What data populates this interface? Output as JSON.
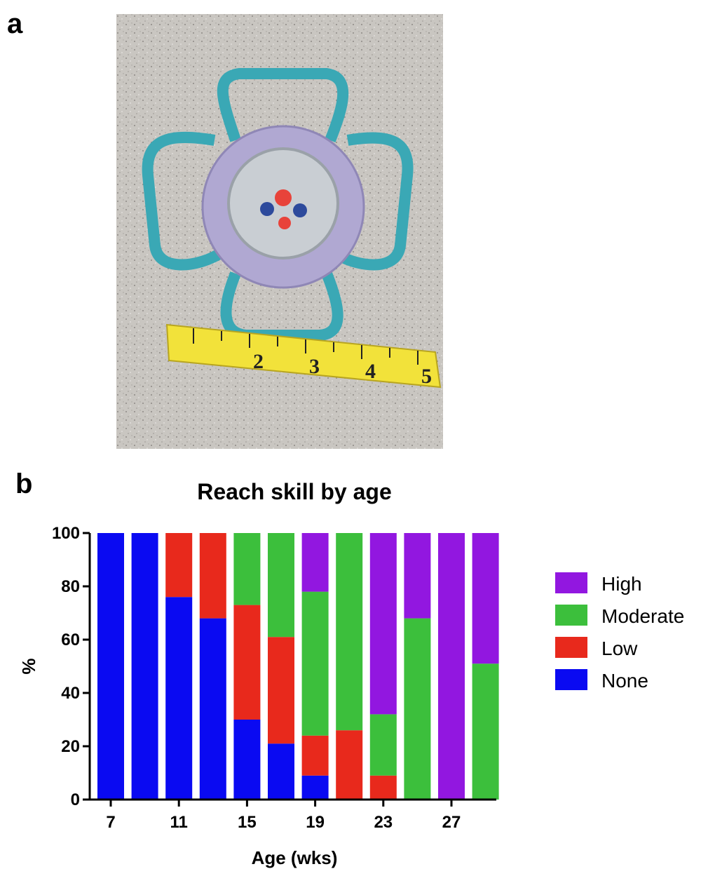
{
  "panels": {
    "a": "a",
    "b": "b"
  },
  "photo": {
    "tape_numbers": [
      "2",
      "3",
      "4",
      "5"
    ],
    "colors": {
      "floor": "#c9c6c1",
      "handle": "#3aa8b5",
      "ring": "#b0a8d2",
      "dome": "#c9ced3",
      "tape": "#f2e23a"
    }
  },
  "chart_data": {
    "type": "bar",
    "stacked": true,
    "title": "Reach skill by age",
    "xlabel": "Age (wks)",
    "ylabel": "%",
    "ylim": [
      0,
      100
    ],
    "yticks": [
      0,
      20,
      40,
      60,
      80,
      100
    ],
    "x": [
      7,
      9,
      11,
      13,
      15,
      17,
      19,
      21,
      23,
      25,
      27,
      29
    ],
    "xtick_labels": [
      {
        "x": 7,
        "label": "7"
      },
      {
        "x": 11,
        "label": "11"
      },
      {
        "x": 15,
        "label": "15"
      },
      {
        "x": 19,
        "label": "19"
      },
      {
        "x": 23,
        "label": "23"
      },
      {
        "x": 27,
        "label": "27"
      }
    ],
    "legend_position": "right",
    "series": [
      {
        "name": "None",
        "color": "#0a0af2",
        "values": [
          100,
          100,
          76,
          68,
          30,
          21,
          9,
          0,
          0,
          0,
          0,
          0
        ]
      },
      {
        "name": "Low",
        "color": "#e8291c",
        "values": [
          0,
          0,
          24,
          32,
          43,
          40,
          15,
          26,
          9,
          0,
          0,
          0
        ]
      },
      {
        "name": "Moderate",
        "color": "#3cbf3c",
        "values": [
          0,
          0,
          0,
          0,
          27,
          39,
          54,
          74,
          23,
          68,
          0,
          51
        ]
      },
      {
        "name": "High",
        "color": "#9217e0",
        "values": [
          0,
          0,
          0,
          0,
          0,
          0,
          22,
          0,
          68,
          32,
          100,
          49
        ]
      }
    ],
    "legend_order": [
      "High",
      "Moderate",
      "Low",
      "None"
    ]
  }
}
